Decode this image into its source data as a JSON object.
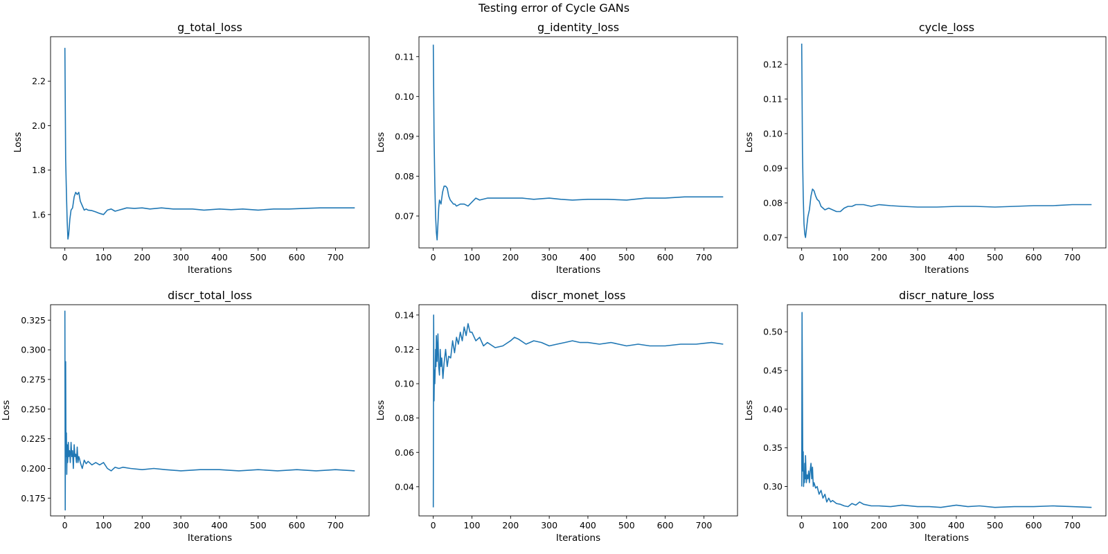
{
  "figure": {
    "title": "Testing error of Cycle GANs"
  },
  "chart_data": [
    {
      "type": "line",
      "title": "g_total_loss",
      "xlabel": "Iterations",
      "ylabel": "Loss",
      "xlim": [
        -37,
        787
      ],
      "ylim": [
        1.45,
        2.4
      ],
      "xticks": [
        0,
        100,
        200,
        300,
        400,
        500,
        600,
        700
      ],
      "yticks": [
        1.6,
        1.8,
        2.0,
        2.2
      ],
      "ytick_decimals": 1,
      "grid": false,
      "color": "#1f77b4",
      "series": [
        {
          "x": [
            0,
            2,
            4,
            6,
            8,
            10,
            13,
            16,
            20,
            24,
            28,
            32,
            36,
            40,
            45,
            50,
            55,
            60,
            70,
            80,
            90,
            100,
            110,
            120,
            130,
            140,
            150,
            160,
            180,
            200,
            220,
            250,
            280,
            300,
            330,
            360,
            400,
            430,
            460,
            500,
            540,
            580,
            620,
            660,
            700,
            750
          ],
          "y": [
            2.35,
            1.85,
            1.7,
            1.57,
            1.49,
            1.51,
            1.58,
            1.62,
            1.63,
            1.68,
            1.7,
            1.69,
            1.7,
            1.66,
            1.64,
            1.62,
            1.625,
            1.62,
            1.618,
            1.612,
            1.605,
            1.6,
            1.62,
            1.625,
            1.615,
            1.62,
            1.625,
            1.63,
            1.628,
            1.63,
            1.625,
            1.63,
            1.625,
            1.625,
            1.625,
            1.62,
            1.625,
            1.622,
            1.625,
            1.62,
            1.625,
            1.625,
            1.628,
            1.63,
            1.63,
            1.63
          ]
        }
      ]
    },
    {
      "type": "line",
      "title": "g_identity_loss",
      "xlabel": "Iterations",
      "ylabel": "Loss",
      "xlim": [
        -37,
        787
      ],
      "ylim": [
        0.062,
        0.115
      ],
      "xticks": [
        0,
        100,
        200,
        300,
        400,
        500,
        600,
        700
      ],
      "yticks": [
        0.07,
        0.08,
        0.09,
        0.1,
        0.11
      ],
      "ytick_decimals": 2,
      "grid": false,
      "color": "#1f77b4",
      "series": [
        {
          "x": [
            0,
            2,
            4,
            6,
            8,
            10,
            12,
            14,
            16,
            18,
            20,
            24,
            28,
            32,
            36,
            40,
            44,
            48,
            52,
            56,
            60,
            70,
            80,
            90,
            100,
            110,
            120,
            140,
            160,
            180,
            200,
            230,
            260,
            300,
            330,
            360,
            400,
            450,
            500,
            550,
            600,
            650,
            700,
            750
          ],
          "y": [
            0.113,
            0.09,
            0.078,
            0.07,
            0.066,
            0.064,
            0.068,
            0.072,
            0.074,
            0.0735,
            0.073,
            0.076,
            0.0775,
            0.0775,
            0.077,
            0.075,
            0.074,
            0.0735,
            0.073,
            0.073,
            0.0725,
            0.073,
            0.073,
            0.0725,
            0.0735,
            0.0745,
            0.074,
            0.0745,
            0.0745,
            0.0745,
            0.0745,
            0.0745,
            0.0742,
            0.0745,
            0.0742,
            0.074,
            0.0742,
            0.0742,
            0.074,
            0.0745,
            0.0745,
            0.0748,
            0.0748,
            0.0748
          ]
        }
      ]
    },
    {
      "type": "line",
      "title": "cycle_loss",
      "xlabel": "Iterations",
      "ylabel": "Loss",
      "xlim": [
        -37,
        787
      ],
      "ylim": [
        0.067,
        0.128
      ],
      "xticks": [
        0,
        100,
        200,
        300,
        400,
        500,
        600,
        700
      ],
      "yticks": [
        0.07,
        0.08,
        0.09,
        0.1,
        0.11,
        0.12
      ],
      "ytick_decimals": 2,
      "grid": false,
      "color": "#1f77b4",
      "series": [
        {
          "x": [
            0,
            2,
            4,
            6,
            8,
            10,
            13,
            16,
            20,
            24,
            28,
            32,
            36,
            40,
            45,
            50,
            55,
            60,
            70,
            80,
            90,
            100,
            110,
            120,
            130,
            140,
            160,
            180,
            200,
            230,
            260,
            300,
            350,
            400,
            450,
            500,
            550,
            600,
            650,
            700,
            750
          ],
          "y": [
            0.126,
            0.095,
            0.082,
            0.074,
            0.071,
            0.07,
            0.073,
            0.076,
            0.078,
            0.082,
            0.084,
            0.0835,
            0.082,
            0.081,
            0.0805,
            0.079,
            0.0785,
            0.078,
            0.0785,
            0.078,
            0.0775,
            0.0775,
            0.0785,
            0.079,
            0.079,
            0.0795,
            0.0795,
            0.079,
            0.0795,
            0.0792,
            0.079,
            0.0788,
            0.0788,
            0.079,
            0.079,
            0.0788,
            0.079,
            0.0792,
            0.0792,
            0.0795,
            0.0795
          ]
        }
      ]
    },
    {
      "type": "line",
      "title": "discr_total_loss",
      "xlabel": "Iterations",
      "ylabel": "Loss",
      "xlim": [
        -37,
        787
      ],
      "ylim": [
        0.16,
        0.338
      ],
      "xticks": [
        0,
        100,
        200,
        300,
        400,
        500,
        600,
        700
      ],
      "yticks": [
        0.175,
        0.2,
        0.225,
        0.25,
        0.275,
        0.3,
        0.325
      ],
      "ytick_decimals": 3,
      "grid": false,
      "color": "#1f77b4",
      "series": [
        {
          "x": [
            0,
            1,
            2,
            3,
            4,
            5,
            6,
            7,
            8,
            9,
            10,
            12,
            14,
            16,
            18,
            20,
            22,
            24,
            26,
            28,
            30,
            32,
            34,
            36,
            38,
            40,
            45,
            50,
            55,
            60,
            70,
            80,
            90,
            100,
            110,
            120,
            130,
            140,
            150,
            170,
            200,
            230,
            260,
            300,
            350,
            400,
            450,
            500,
            550,
            600,
            650,
            700,
            750
          ],
          "y": [
            0.333,
            0.165,
            0.29,
            0.21,
            0.23,
            0.195,
            0.22,
            0.205,
            0.21,
            0.222,
            0.21,
            0.215,
            0.205,
            0.222,
            0.21,
            0.215,
            0.2,
            0.22,
            0.21,
            0.212,
            0.205,
            0.218,
            0.205,
            0.21,
            0.208,
            0.205,
            0.2,
            0.207,
            0.204,
            0.206,
            0.203,
            0.205,
            0.203,
            0.205,
            0.2,
            0.198,
            0.201,
            0.2,
            0.201,
            0.2,
            0.199,
            0.2,
            0.199,
            0.198,
            0.199,
            0.199,
            0.198,
            0.199,
            0.198,
            0.199,
            0.198,
            0.199,
            0.198
          ]
        }
      ]
    },
    {
      "type": "line",
      "title": "discr_monet_loss",
      "xlabel": "Iterations",
      "ylabel": "Loss",
      "xlim": [
        -37,
        787
      ],
      "ylim": [
        0.023,
        0.146
      ],
      "xticks": [
        0,
        100,
        200,
        300,
        400,
        500,
        600,
        700
      ],
      "yticks": [
        0.04,
        0.06,
        0.08,
        0.1,
        0.12,
        0.14
      ],
      "ytick_decimals": 2,
      "grid": false,
      "color": "#1f77b4",
      "series": [
        {
          "x": [
            0,
            1,
            2,
            3,
            4,
            5,
            6,
            7,
            8,
            10,
            12,
            14,
            16,
            18,
            20,
            22,
            25,
            28,
            32,
            36,
            40,
            45,
            50,
            55,
            60,
            65,
            70,
            75,
            80,
            85,
            90,
            95,
            100,
            110,
            120,
            130,
            140,
            160,
            180,
            200,
            210,
            220,
            240,
            260,
            280,
            300,
            320,
            340,
            360,
            380,
            400,
            430,
            460,
            500,
            530,
            560,
            600,
            640,
            680,
            720,
            750
          ],
          "y": [
            0.028,
            0.14,
            0.09,
            0.108,
            0.1,
            0.107,
            0.12,
            0.11,
            0.128,
            0.113,
            0.129,
            0.11,
            0.105,
            0.12,
            0.11,
            0.115,
            0.103,
            0.112,
            0.12,
            0.11,
            0.116,
            0.115,
            0.125,
            0.118,
            0.127,
            0.123,
            0.13,
            0.125,
            0.133,
            0.128,
            0.135,
            0.13,
            0.13,
            0.125,
            0.127,
            0.122,
            0.124,
            0.121,
            0.122,
            0.125,
            0.127,
            0.126,
            0.123,
            0.125,
            0.124,
            0.122,
            0.123,
            0.124,
            0.125,
            0.124,
            0.124,
            0.123,
            0.124,
            0.122,
            0.123,
            0.122,
            0.122,
            0.123,
            0.123,
            0.124,
            0.123
          ]
        }
      ]
    },
    {
      "type": "line",
      "title": "discr_nature_loss",
      "xlabel": "Iterations",
      "ylabel": "Loss",
      "xlim": [
        -37,
        787
      ],
      "ylim": [
        0.262,
        0.535
      ],
      "xticks": [
        0,
        100,
        200,
        300,
        400,
        500,
        600,
        700
      ],
      "yticks": [
        0.3,
        0.35,
        0.4,
        0.45,
        0.5
      ],
      "ytick_decimals": 2,
      "grid": false,
      "color": "#1f77b4",
      "series": [
        {
          "x": [
            0,
            1,
            2,
            3,
            4,
            5,
            6,
            7,
            8,
            9,
            10,
            12,
            14,
            16,
            18,
            20,
            22,
            24,
            26,
            28,
            30,
            32,
            36,
            40,
            45,
            50,
            55,
            60,
            65,
            70,
            75,
            80,
            90,
            100,
            110,
            120,
            130,
            140,
            150,
            160,
            180,
            200,
            230,
            260,
            300,
            330,
            360,
            400,
            430,
            460,
            500,
            550,
            600,
            650,
            700,
            750
          ],
          "y": [
            0.3,
            0.525,
            0.41,
            0.32,
            0.345,
            0.3,
            0.32,
            0.305,
            0.33,
            0.31,
            0.34,
            0.305,
            0.315,
            0.31,
            0.32,
            0.305,
            0.32,
            0.33,
            0.31,
            0.325,
            0.3,
            0.305,
            0.298,
            0.3,
            0.29,
            0.295,
            0.285,
            0.29,
            0.28,
            0.285,
            0.28,
            0.282,
            0.278,
            0.277,
            0.275,
            0.274,
            0.278,
            0.276,
            0.28,
            0.277,
            0.275,
            0.275,
            0.274,
            0.276,
            0.274,
            0.274,
            0.273,
            0.276,
            0.274,
            0.275,
            0.273,
            0.274,
            0.274,
            0.275,
            0.274,
            0.273
          ]
        }
      ]
    }
  ]
}
